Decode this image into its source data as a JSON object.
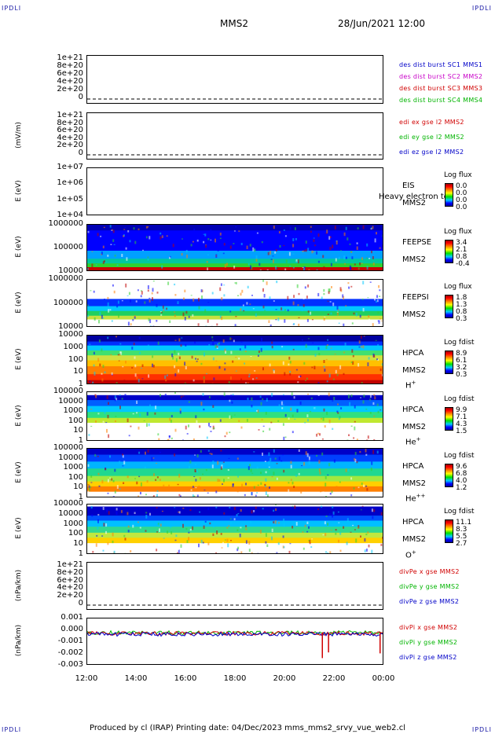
{
  "header": {
    "corner_left_top": "IPDLI",
    "corner_right_top": "IPDLI",
    "corner_left_bottom": "IPDLI",
    "corner_right_bottom": "IPDLI",
    "spacecraft": "MMS2",
    "datetime": "28/Jun/2021 12:00"
  },
  "footer": {
    "text": "Produced by cl (IRAP)    Printing date: 04/Dec/2023    mms_mms2_srvy_vue_web2.cl"
  },
  "colors": {
    "blue": "#0000c8",
    "magenta": "#c800c8",
    "red": "#d00000",
    "green": "#00b400"
  },
  "chart_data": [
    {
      "type": "line",
      "id": "des-dist",
      "ylabel": "",
      "yticks": [
        "1e+21",
        "8e+20",
        "6e+20",
        "4e+20",
        "2e+20",
        "0"
      ],
      "legend": [
        {
          "text": "des dist burst SC1 MMS1",
          "color": "#0000c8"
        },
        {
          "text": "des dist burst SC2 MMS2",
          "color": "#c800c8"
        },
        {
          "text": "des dist burst SC3 MMS3",
          "color": "#d00000"
        },
        {
          "text": "des dist burst SC4 MMS4",
          "color": "#00b400"
        }
      ]
    },
    {
      "type": "line",
      "id": "edi",
      "ylabel": "(mV/m)",
      "yticks": [
        "1e+21",
        "8e+20",
        "6e+20",
        "4e+20",
        "2e+20",
        "0"
      ],
      "legend": [
        {
          "text": "edi ex gse l2 MMS2",
          "color": "#d00000"
        },
        {
          "text": "edi ey gse l2 MMS2",
          "color": "#00b400"
        },
        {
          "text": "edi ez gse l2 MMS2",
          "color": "#0000c8"
        }
      ]
    },
    {
      "type": "heatmap",
      "id": "eis",
      "ylabel": "E (eV)",
      "yticks": [
        "1e+07",
        "1e+06",
        "1e+05",
        "1e+04"
      ],
      "instrument": [
        "EIS",
        "MMS2"
      ],
      "overlay_text": "Heavy electron tot",
      "cbar_title": "Log flux",
      "cbar_ticks": [
        "0.0",
        "0.0",
        "0.0",
        "0.0"
      ]
    },
    {
      "type": "heatmap",
      "id": "feepse",
      "ylabel": "E (eV)",
      "yticks": [
        "1000000",
        "100000",
        "10000"
      ],
      "instrument": [
        "FEEPSE",
        "MMS2"
      ],
      "cbar_title": "Log flux",
      "cbar_ticks": [
        "3.4",
        "2.1",
        "0.8",
        "-0.4"
      ]
    },
    {
      "type": "heatmap",
      "id": "feepsi",
      "ylabel": "E (eV)",
      "yticks": [
        "1000000",
        "100000",
        "10000"
      ],
      "instrument": [
        "FEEPSI",
        "MMS2"
      ],
      "cbar_title": "Log flux",
      "cbar_ticks": [
        "1.8",
        "1.3",
        "0.8",
        "0.3"
      ]
    },
    {
      "type": "heatmap",
      "id": "hpca-h",
      "ylabel": "E (eV)",
      "yticks": [
        "10000",
        "1000",
        "100",
        "10",
        "1"
      ],
      "instrument": [
        "HPCA",
        "MMS2"
      ],
      "species": "H",
      "species_sup": "+",
      "cbar_title": "Log fdist",
      "cbar_ticks": [
        "8.9",
        "6.1",
        "3.2",
        "0.3"
      ]
    },
    {
      "type": "heatmap",
      "id": "hpca-he",
      "ylabel": "E (eV)",
      "yticks": [
        "100000",
        "10000",
        "1000",
        "100",
        "10",
        "1"
      ],
      "instrument": [
        "HPCA",
        "MMS2"
      ],
      "species": "He",
      "species_sup": "+",
      "cbar_title": "Log fdist",
      "cbar_ticks": [
        "9.9",
        "7.1",
        "4.3",
        "1.5"
      ]
    },
    {
      "type": "heatmap",
      "id": "hpca-hepp",
      "ylabel": "E (eV)",
      "yticks": [
        "100000",
        "10000",
        "1000",
        "100",
        "10",
        "1"
      ],
      "instrument": [
        "HPCA",
        "MMS2"
      ],
      "species": "He",
      "species_sup": "++",
      "cbar_title": "Log fdist",
      "cbar_ticks": [
        "9.6",
        "6.8",
        "4.0",
        "1.2"
      ]
    },
    {
      "type": "heatmap",
      "id": "hpca-o",
      "ylabel": "E (eV)",
      "yticks": [
        "100000",
        "10000",
        "1000",
        "100",
        "10",
        "1"
      ],
      "instrument": [
        "HPCA",
        "MMS2"
      ],
      "species": "O",
      "species_sup": "+",
      "cbar_title": "Log fdist",
      "cbar_ticks": [
        "11.1",
        "8.3",
        "5.5",
        "2.7"
      ]
    },
    {
      "type": "line",
      "id": "divpe",
      "ylabel": "(nPa/km)",
      "yticks": [
        "1e+21",
        "8e+20",
        "6e+20",
        "4e+20",
        "2e+20",
        "0"
      ],
      "legend": [
        {
          "text": "divPe x gse MMS2",
          "color": "#d00000"
        },
        {
          "text": "divPe y gse MMS2",
          "color": "#00b400"
        },
        {
          "text": "divPe z gse MMS2",
          "color": "#0000c8"
        }
      ]
    },
    {
      "type": "line",
      "id": "divpi",
      "ylabel": "(nPa/km)",
      "yticks": [
        "0.001",
        "0.000",
        "-0.001",
        "-0.002",
        "-0.003"
      ],
      "ylim": [
        -0.0035,
        0.0015
      ],
      "legend": [
        {
          "text": "divPi x gse MMS2",
          "color": "#d00000"
        },
        {
          "text": "divPi y gse MMS2",
          "color": "#00b400"
        },
        {
          "text": "divPi z gse MMS2",
          "color": "#0000c8"
        }
      ],
      "spikes": [
        {
          "time": "21:30",
          "value": -0.0027
        },
        {
          "time": "21:45",
          "value": -0.0021
        },
        {
          "time": "23:50",
          "value": -0.0022
        }
      ]
    }
  ],
  "xaxis": {
    "ticks": [
      "12:00",
      "14:00",
      "16:00",
      "18:00",
      "20:00",
      "22:00",
      "00:00"
    ]
  }
}
